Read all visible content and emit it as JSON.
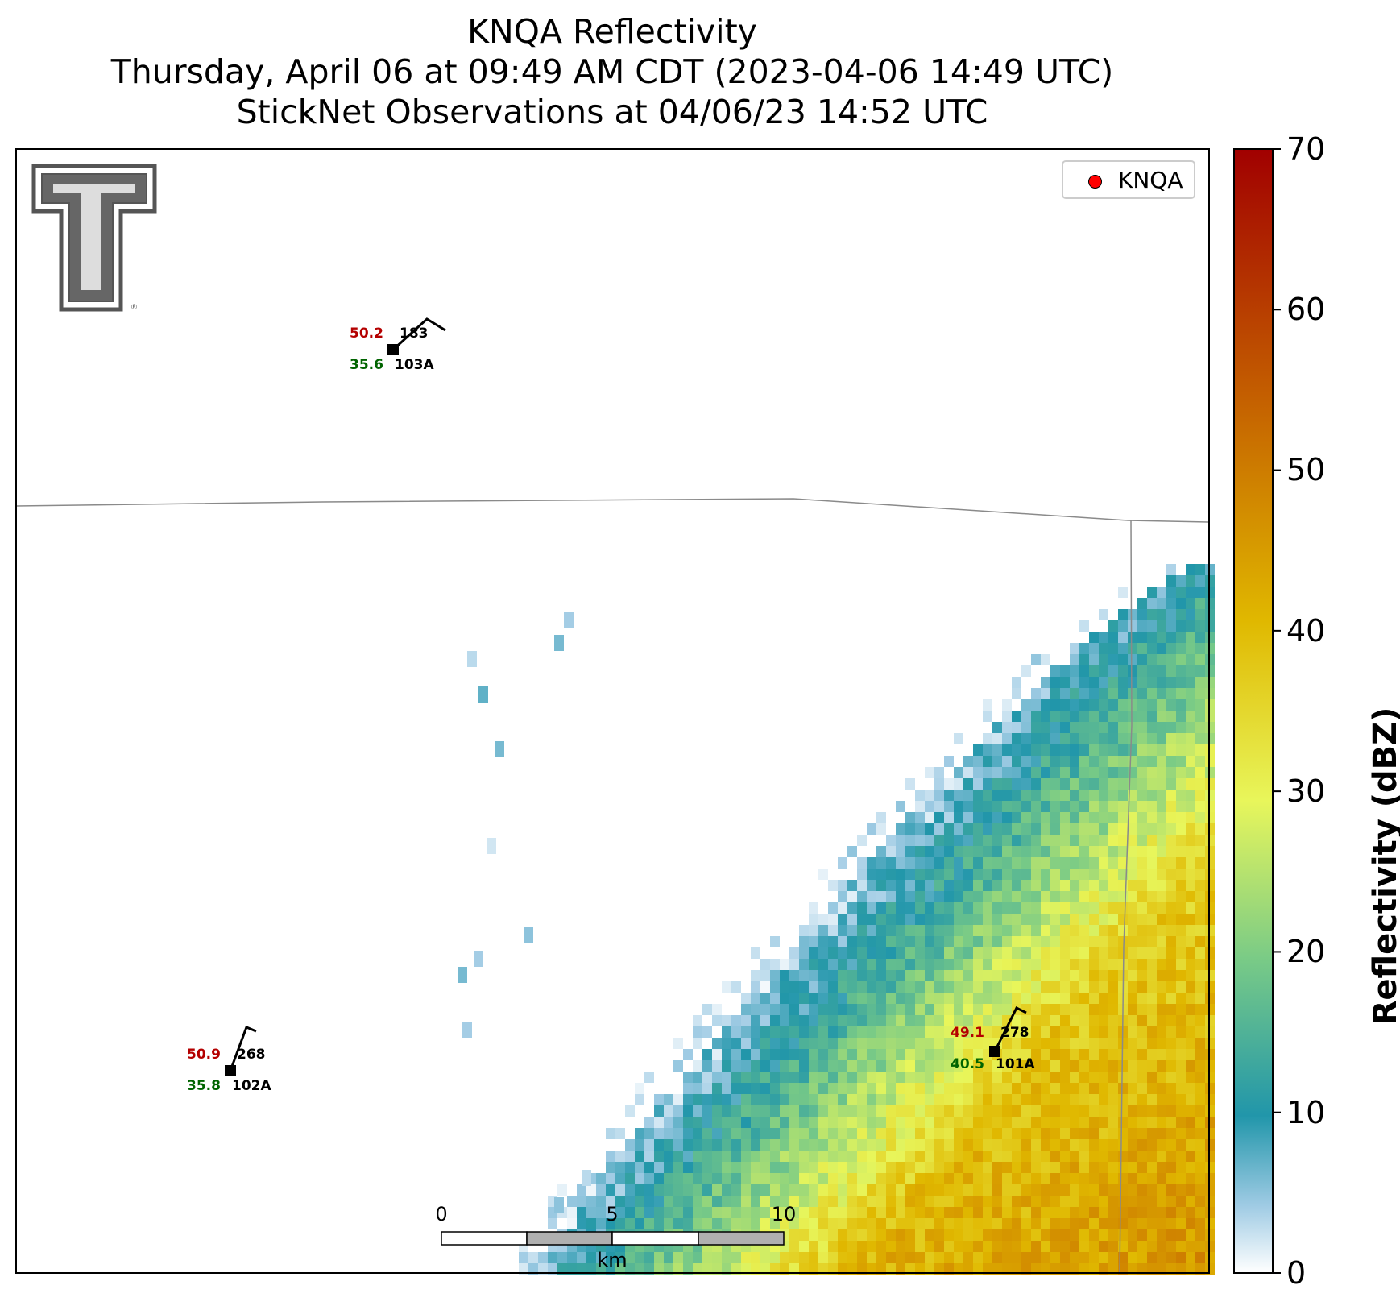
{
  "title": {
    "line1": "KNQA Reflectivity",
    "line2": "Thursday, April 06 at 09:49 AM CDT (2023-04-06 14:49 UTC)",
    "line3": "StickNet Observations at 04/06/23 14:52 UTC"
  },
  "legend": {
    "label": "KNQA",
    "marker_color": "#ff0000"
  },
  "logo": {
    "icon": "texas-tech-double-t-logo"
  },
  "colorbar": {
    "label": "Reflectivity (dBZ)",
    "min": 0,
    "max": 70,
    "ticks": [
      "0",
      "10",
      "20",
      "30",
      "40",
      "50",
      "60",
      "70"
    ],
    "colors": [
      "#ffffff",
      "#9fcbe4",
      "#2196aa",
      "#7acb86",
      "#e8f65b",
      "#e0b800",
      "#c45f00",
      "#a10000"
    ]
  },
  "stations": [
    {
      "id": "103A",
      "temperature": "50.2",
      "dewpoint": "35.6",
      "wind_direction": "183"
    },
    {
      "id": "102A",
      "temperature": "50.9",
      "dewpoint": "35.8",
      "wind_direction": "268"
    },
    {
      "id": "101A",
      "temperature": "49.1",
      "dewpoint": "40.5",
      "wind_direction": "278"
    }
  ],
  "scalebar": {
    "unit": "km",
    "ticks": [
      "0",
      "5",
      "10"
    ]
  }
}
